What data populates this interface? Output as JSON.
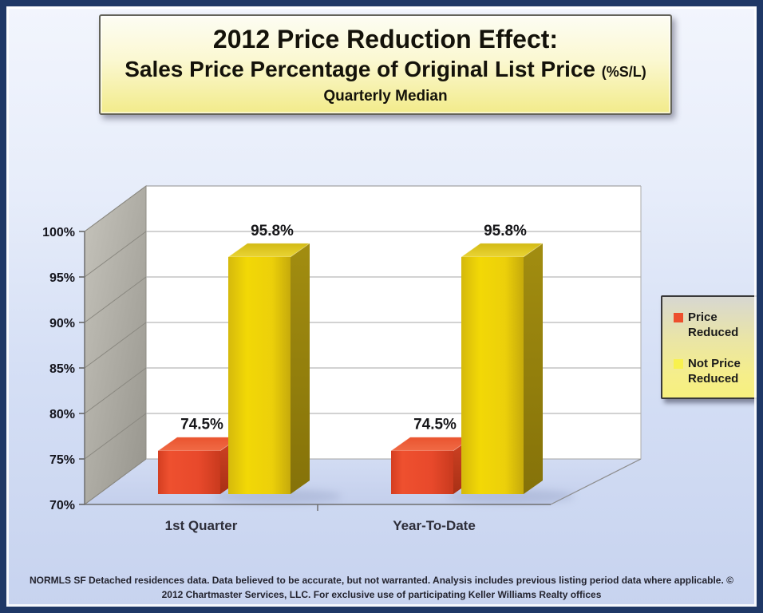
{
  "title": {
    "line1": "2012 Price Reduction Effect:",
    "line2": "Sales Price Percentage of Original List Price",
    "line2_suffix": "(%S/L)",
    "line3": "Quarterly Median"
  },
  "chart_data": {
    "type": "bar",
    "style": "3d-clustered-column",
    "title": "2012 Price Reduction Effect: Sales Price Percentage of Original List Price (%S/L) Quarterly Median",
    "categories": [
      "1st Quarter",
      "Year-To-Date"
    ],
    "series": [
      {
        "name": "Price Reduced",
        "color": "#e8492b",
        "values": [
          74.5,
          74.5
        ]
      },
      {
        "name": "Not Price Reduced",
        "color": "#ecd00a",
        "values": [
          95.8,
          95.8
        ]
      }
    ],
    "value_label_format": "percent-1-decimal",
    "xlabel": "",
    "ylabel": "",
    "ylim": [
      70,
      100
    ],
    "y_ticks": [
      "100%",
      "95%",
      "90%",
      "85%",
      "80%",
      "75%",
      "70%"
    ],
    "y_tick_values": [
      100,
      95,
      90,
      85,
      80,
      75,
      70
    ],
    "grid": true,
    "legend_position": "right",
    "wall_color": "#ffffff",
    "side_wall_color": "#aeaca4",
    "floor_color": "#ccd6ee"
  },
  "legend": {
    "items": [
      {
        "label": "Price Reduced",
        "color": "#ed4f2d"
      },
      {
        "label": "Not Price Reduced",
        "color": "#f8f14e"
      }
    ]
  },
  "footer": {
    "line1": "NORMLS SF Detached residences data.  Data believed to be accurate, but not warranted.    Analysis includes previous listing period data where applicable.  ©",
    "line2": "2012 Chartmaster Services, LLC.  For exclusive use of participating Keller Williams Realty offices"
  }
}
